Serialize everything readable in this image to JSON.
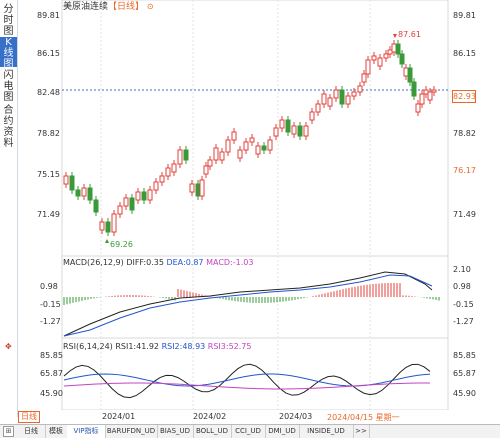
{
  "sidebar": {
    "items": [
      {
        "label": "分时图"
      },
      {
        "label": "K线图"
      },
      {
        "label": "闪电图"
      },
      {
        "label": "合约资料"
      }
    ]
  },
  "header": {
    "instrument": "美原油连续",
    "period": "【日线】",
    "info_icon": "info-icon"
  },
  "price_axis": {
    "left": [
      "89.81",
      "86.15",
      "82.48",
      "78.82",
      "75.15",
      "71.49"
    ],
    "right": [
      "89.81",
      "86.15",
      "78.82",
      "71.49"
    ],
    "right_highlight": "76.17",
    "last_price": "82.93",
    "high_label": "87.61",
    "low_label": "69.26"
  },
  "macd": {
    "title": "MACD(26,12,9)",
    "diff": "DIFF:0.35",
    "dea": "DEA:0.87",
    "macd": "MACD:-1.03",
    "left_ticks": [
      "0.98",
      "-0.15",
      "-1.27"
    ],
    "right_ticks": [
      "2.10",
      "0.98",
      "-0.15",
      "-1.27"
    ]
  },
  "rsi": {
    "title": "RSI(6,14,24)",
    "rsi1": "RSI1:41.92",
    "rsi2": "RSI2:48.93",
    "rsi3": "RSI3:52.75",
    "left_ticks": [
      "85.85",
      "65.87",
      "45.90"
    ],
    "right_ticks": [
      "85.85",
      "65.87",
      "45.90"
    ]
  },
  "time_axis": {
    "labels": [
      "2024/01",
      "2024/02",
      "2024/03"
    ],
    "current": "2024/04/15 星期一"
  },
  "bottom_tabs": [
    {
      "label": "日线"
    },
    {
      "label": "模板"
    },
    {
      "label": "VIP指标"
    },
    {
      "label": "BARUFDN_UD"
    },
    {
      "label": "BIAS_UD"
    },
    {
      "label": "BOLL_UD"
    },
    {
      "label": "CCI_UD"
    },
    {
      "label": "DMI_UD"
    },
    {
      "label": "INSIDE_UD"
    },
    {
      "label": ">>"
    }
  ],
  "colors": {
    "up": "#e0413b",
    "down": "#3a9a3a",
    "accent": "#e86a2a",
    "axis_blue": "#3670c8"
  }
}
